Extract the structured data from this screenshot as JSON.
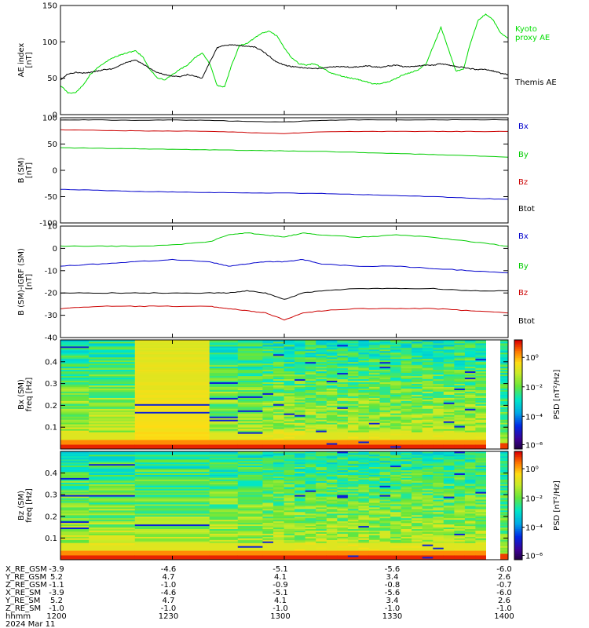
{
  "chart_data": [
    {
      "type": "line",
      "ylabel_lines": [
        "AE index",
        "[nT]"
      ],
      "ylim": [
        0,
        150
      ],
      "yticks": [
        0,
        50,
        100,
        150
      ],
      "xlim": [
        0,
        120
      ],
      "series": [
        {
          "name": "Kyoto proxy AE",
          "name_lines": [
            "Kyoto",
            "proxy AE"
          ],
          "color": "#00dd00",
          "x": [
            0,
            2,
            4,
            6,
            8,
            10,
            12,
            14,
            16,
            18,
            20,
            22,
            24,
            26,
            28,
            30,
            32,
            34,
            36,
            38,
            40,
            42,
            44,
            46,
            48,
            50,
            52,
            54,
            56,
            58,
            60,
            62,
            64,
            66,
            68,
            70,
            72,
            74,
            76,
            78,
            80,
            82,
            84,
            86,
            88,
            90,
            92,
            94,
            96,
            98,
            100,
            102,
            104,
            106,
            108,
            110,
            112,
            114,
            116,
            118,
            120
          ],
          "y": [
            40,
            30,
            30,
            40,
            55,
            65,
            72,
            78,
            82,
            85,
            88,
            80,
            62,
            50,
            48,
            55,
            62,
            68,
            78,
            85,
            70,
            40,
            38,
            70,
            95,
            98,
            105,
            112,
            115,
            108,
            92,
            78,
            70,
            68,
            70,
            65,
            58,
            55,
            52,
            50,
            48,
            45,
            42,
            43,
            45,
            50,
            55,
            58,
            62,
            70,
            95,
            120,
            90,
            60,
            62,
            100,
            130,
            138,
            130,
            112,
            105
          ]
        },
        {
          "name": "Themis AE",
          "name_lines": [
            "Themis AE"
          ],
          "color": "#000000",
          "x": [
            0,
            2,
            4,
            6,
            8,
            10,
            12,
            14,
            16,
            18,
            20,
            22,
            24,
            26,
            28,
            30,
            32,
            34,
            36,
            38,
            40,
            42,
            44,
            46,
            48,
            50,
            52,
            54,
            56,
            58,
            60,
            62,
            64,
            66,
            68,
            70,
            72,
            74,
            76,
            78,
            80,
            82,
            84,
            86,
            88,
            90,
            92,
            94,
            96,
            98,
            100,
            102,
            104,
            106,
            108,
            110,
            112,
            114,
            116,
            118,
            120
          ],
          "y": [
            48,
            56,
            58,
            57,
            58,
            60,
            62,
            63,
            68,
            72,
            75,
            70,
            63,
            58,
            55,
            53,
            52,
            55,
            53,
            50,
            72,
            92,
            95,
            96,
            95,
            94,
            93,
            88,
            80,
            72,
            68,
            66,
            65,
            64,
            63,
            64,
            65,
            66,
            66,
            65,
            66,
            67,
            66,
            65,
            67,
            68,
            66,
            66,
            67,
            68,
            68,
            70,
            68,
            66,
            65,
            63,
            62,
            62,
            60,
            57,
            55
          ]
        }
      ]
    },
    {
      "type": "line",
      "ylabel_lines": [
        "B (SM)",
        "[nT]"
      ],
      "ylim": [
        -100,
        100
      ],
      "yticks": [
        -100,
        -50,
        0,
        50,
        100
      ],
      "xlim": [
        0,
        120
      ],
      "legend": [
        {
          "name": "Bx",
          "color": "#0000cc"
        },
        {
          "name": "By",
          "color": "#00cc00"
        },
        {
          "name": "Bz",
          "color": "#cc0000"
        },
        {
          "name": "Btot",
          "color": "#000000"
        }
      ],
      "series": [
        {
          "name": "Btot",
          "color": "#000000",
          "x": [
            0,
            10,
            20,
            30,
            40,
            50,
            60,
            70,
            80,
            90,
            100,
            110,
            120
          ],
          "y": [
            96,
            96,
            95,
            96,
            95,
            93,
            92,
            95,
            96,
            96,
            96,
            96,
            96
          ]
        },
        {
          "name": "Bz",
          "color": "#cc0000",
          "x": [
            0,
            10,
            20,
            30,
            40,
            50,
            60,
            70,
            80,
            90,
            100,
            110,
            120
          ],
          "y": [
            77,
            76,
            75,
            75,
            74,
            72,
            70,
            73,
            74,
            74,
            74,
            74,
            74
          ]
        },
        {
          "name": "By",
          "color": "#00cc00",
          "x": [
            0,
            10,
            20,
            30,
            40,
            50,
            60,
            70,
            80,
            90,
            100,
            110,
            120
          ],
          "y": [
            43,
            42,
            41,
            40,
            39,
            38,
            37,
            36,
            34,
            32,
            30,
            28,
            25
          ]
        },
        {
          "name": "Bx",
          "color": "#0000cc",
          "x": [
            0,
            10,
            20,
            30,
            40,
            50,
            60,
            70,
            80,
            90,
            100,
            110,
            120
          ],
          "y": [
            -36,
            -38,
            -40,
            -41,
            -42,
            -43,
            -43,
            -44,
            -46,
            -48,
            -50,
            -53,
            -55
          ]
        }
      ]
    },
    {
      "type": "line",
      "ylabel_lines": [
        "B (SM)-IGRF (SM)",
        "[nT]"
      ],
      "ylim": [
        -40,
        10
      ],
      "yticks": [
        -40,
        -30,
        -20,
        -10,
        0,
        10
      ],
      "xlim": [
        0,
        120
      ],
      "legend": [
        {
          "name": "Bx",
          "color": "#0000cc"
        },
        {
          "name": "By",
          "color": "#00cc00"
        },
        {
          "name": "Bz",
          "color": "#cc0000"
        },
        {
          "name": "Btot",
          "color": "#000000"
        }
      ],
      "series": [
        {
          "name": "By",
          "color": "#00cc00",
          "x": [
            0,
            10,
            20,
            30,
            40,
            45,
            50,
            55,
            60,
            65,
            70,
            80,
            90,
            100,
            110,
            120
          ],
          "y": [
            1,
            1,
            1,
            1.5,
            3,
            6,
            7,
            6,
            5,
            7,
            6,
            5,
            6,
            5,
            3,
            1
          ]
        },
        {
          "name": "Bx",
          "color": "#0000cc",
          "x": [
            0,
            10,
            20,
            30,
            40,
            45,
            50,
            55,
            60,
            65,
            70,
            80,
            90,
            100,
            110,
            120
          ],
          "y": [
            -8,
            -7,
            -6,
            -5,
            -6,
            -8,
            -7,
            -6,
            -6,
            -5,
            -7,
            -8,
            -8,
            -9,
            -10,
            -11
          ]
        },
        {
          "name": "Btot",
          "color": "#000000",
          "x": [
            0,
            10,
            20,
            30,
            40,
            45,
            50,
            55,
            60,
            65,
            70,
            80,
            90,
            100,
            110,
            120
          ],
          "y": [
            -20,
            -20,
            -20,
            -20,
            -20,
            -20,
            -19,
            -20,
            -23,
            -20,
            -19,
            -18,
            -18,
            -18,
            -19,
            -19
          ]
        },
        {
          "name": "Bz",
          "color": "#cc0000",
          "x": [
            0,
            10,
            20,
            30,
            40,
            45,
            50,
            55,
            60,
            65,
            70,
            80,
            90,
            100,
            110,
            120
          ],
          "y": [
            -27,
            -26,
            -26,
            -26,
            -26,
            -27,
            -28,
            -29,
            -32,
            -29,
            -28,
            -27,
            -27,
            -27,
            -28,
            -29
          ]
        }
      ]
    },
    {
      "type": "heatmap",
      "ylabel_lines": [
        "Bx (SM)",
        "freq  [Hz]"
      ],
      "ylim": [
        0,
        0.5
      ],
      "yticks": [
        0.1,
        0.2,
        0.3,
        0.4
      ],
      "xlim": [
        0,
        120
      ],
      "colorbar": {
        "label": "PSD [nT²/Hz]",
        "ticks": [
          "10⁰",
          "10⁻²",
          "10⁻⁴",
          "10⁻⁶"
        ]
      },
      "seed": 7,
      "bright_window": [
        21,
        42
      ]
    },
    {
      "type": "heatmap",
      "ylabel_lines": [
        "Bz (SM)",
        "freq  [Hz]"
      ],
      "ylim": [
        0,
        0.5
      ],
      "yticks": [
        0.1,
        0.2,
        0.3,
        0.4
      ],
      "xlim": [
        0,
        120
      ],
      "colorbar": {
        "label": "PSD [nT²/Hz]",
        "ticks": [
          "10⁰",
          "10⁻²",
          "10⁻⁴",
          "10⁻⁶"
        ]
      },
      "seed": 13,
      "bright_window": [
        21,
        42
      ]
    }
  ],
  "footer": {
    "rows": [
      {
        "label": "X_RE_GSM",
        "values": [
          "-3.9",
          "-4.6",
          "-5.1",
          "-5.6",
          "-6.0"
        ]
      },
      {
        "label": "Y_RE_GSM",
        "values": [
          "5.2",
          "4.7",
          "4.1",
          "3.4",
          "2.6"
        ]
      },
      {
        "label": "Z_RE_GSM",
        "values": [
          "-1.1",
          "-1.0",
          "-0.9",
          "-0.8",
          "-0.7"
        ]
      },
      {
        "label": "X_RE_SM",
        "values": [
          "-3.9",
          "-4.6",
          "-5.1",
          "-5.6",
          "-6.0"
        ]
      },
      {
        "label": "Y_RE_SM",
        "values": [
          "5.2",
          "4.7",
          "4.1",
          "3.4",
          "2.6"
        ]
      },
      {
        "label": "Z_RE_SM",
        "values": [
          "-1.0",
          "-1.0",
          "-1.0",
          "-1.0",
          "-1.0"
        ]
      },
      {
        "label": "hhmm",
        "values": [
          "1200",
          "1230",
          "1300",
          "1330",
          "1400"
        ]
      }
    ],
    "date": "2024 Mar 11"
  }
}
